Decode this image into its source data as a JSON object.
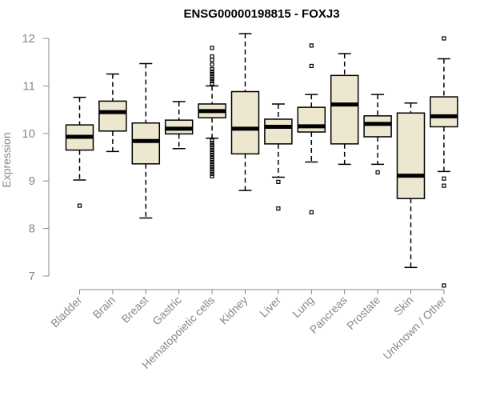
{
  "chart_data": {
    "type": "boxplot",
    "title": "ENSG00000198815 - FOXJ3",
    "ylabel": "Expression",
    "xlabel": "",
    "ylim": [
      6.9,
      12.1
    ],
    "yticks": [
      7,
      8,
      9,
      10,
      11,
      12
    ],
    "box_fill": "#ece7ce",
    "axis_color": "#888888",
    "series": [
      {
        "name": "Bladder",
        "whisker_low": 9.02,
        "q1": 9.65,
        "median": 9.93,
        "q3": 10.18,
        "whisker_high": 10.76,
        "outliers": [
          8.48
        ]
      },
      {
        "name": "Brain",
        "whisker_low": 9.62,
        "q1": 10.05,
        "median": 10.45,
        "q3": 10.68,
        "whisker_high": 11.25,
        "outliers": []
      },
      {
        "name": "Breast",
        "whisker_low": 8.22,
        "q1": 9.36,
        "median": 9.84,
        "q3": 10.22,
        "whisker_high": 11.47,
        "outliers": []
      },
      {
        "name": "Gastric",
        "whisker_low": 9.68,
        "q1": 9.99,
        "median": 10.1,
        "q3": 10.28,
        "whisker_high": 10.67,
        "outliers": []
      },
      {
        "name": "Hematopoietic cells",
        "whisker_low": 9.9,
        "q1": 10.33,
        "median": 10.47,
        "q3": 10.62,
        "whisker_high": 11.0,
        "outliers": [
          9.1,
          9.15,
          9.2,
          9.25,
          9.3,
          9.35,
          9.4,
          9.45,
          9.5,
          9.55,
          9.6,
          9.65,
          9.7,
          9.75,
          9.8,
          9.85,
          11.05,
          11.1,
          11.15,
          11.2,
          11.25,
          11.3,
          11.35,
          11.45,
          11.55,
          11.62,
          11.8
        ]
      },
      {
        "name": "Kidney",
        "whisker_low": 8.8,
        "q1": 9.57,
        "median": 10.1,
        "q3": 10.88,
        "whisker_high": 12.1,
        "outliers": []
      },
      {
        "name": "Liver",
        "whisker_low": 9.08,
        "q1": 9.78,
        "median": 10.14,
        "q3": 10.3,
        "whisker_high": 10.62,
        "outliers": [
          8.98,
          8.42
        ]
      },
      {
        "name": "Lung",
        "whisker_low": 9.4,
        "q1": 10.03,
        "median": 10.15,
        "q3": 10.55,
        "whisker_high": 10.82,
        "outliers": [
          11.85,
          11.42,
          8.34
        ]
      },
      {
        "name": "Pancreas",
        "whisker_low": 9.35,
        "q1": 9.78,
        "median": 10.61,
        "q3": 11.22,
        "whisker_high": 11.68,
        "outliers": []
      },
      {
        "name": "Prostate",
        "whisker_low": 9.35,
        "q1": 9.93,
        "median": 10.2,
        "q3": 10.37,
        "whisker_high": 10.82,
        "outliers": [
          9.18
        ]
      },
      {
        "name": "Skin",
        "whisker_low": 7.18,
        "q1": 8.63,
        "median": 9.11,
        "q3": 10.43,
        "whisker_high": 10.64,
        "outliers": []
      },
      {
        "name": "Unknown / Other",
        "whisker_low": 9.2,
        "q1": 10.14,
        "median": 10.36,
        "q3": 10.77,
        "whisker_high": 11.57,
        "outliers": [
          12.0,
          9.05,
          8.9,
          6.8
        ]
      }
    ]
  }
}
